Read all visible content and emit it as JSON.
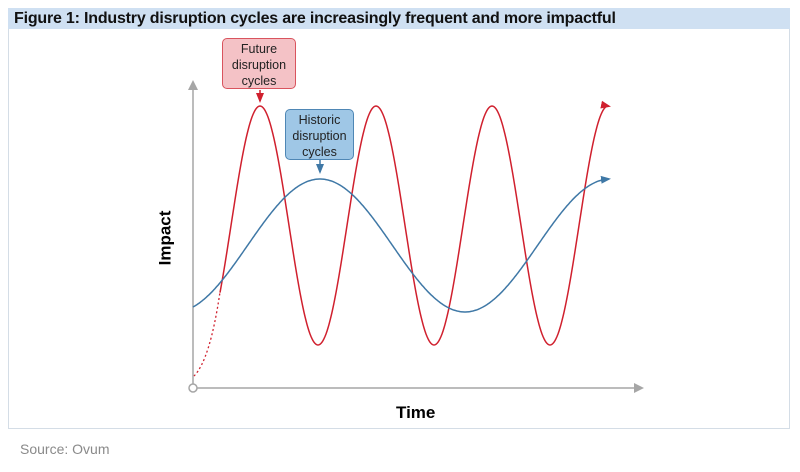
{
  "title": "Figure 1: Industry disruption cycles are increasingly frequent and more impactful",
  "source": "Source: Ovum",
  "chart_data": {
    "type": "line",
    "xlabel": "Time",
    "ylabel": "Impact",
    "grid": false,
    "series_colors": {
      "future": "#d0202e",
      "historic": "#3f78a6"
    },
    "annotations": [
      {
        "text": "Future disruption cycles",
        "lines": [
          "Future",
          "disruption",
          "cycles"
        ],
        "color": "#f4c2c6"
      },
      {
        "text": "Historic disruption cycles",
        "lines": [
          "Historic",
          "disruption",
          "cycles"
        ],
        "color": "#9fc7e6"
      }
    ]
  }
}
